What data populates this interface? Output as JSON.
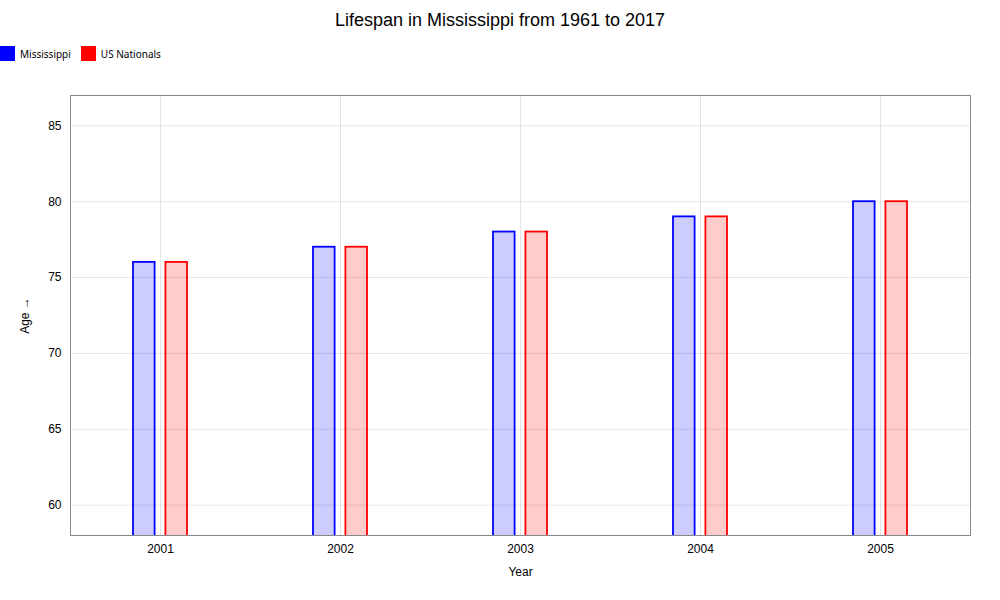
{
  "chart_data": {
    "type": "bar",
    "title": "Lifespan in Mississippi from 1961 to 2017",
    "xlabel": "Year",
    "ylabel": "Age",
    "categories": [
      "2001",
      "2002",
      "2003",
      "2004",
      "2005"
    ],
    "series": [
      {
        "name": "Mississippi",
        "color": "#0000ff",
        "values": [
          76.0,
          77.0,
          78.0,
          79.0,
          80.0
        ]
      },
      {
        "name": "US Nationals",
        "color": "#ff0000",
        "values": [
          76.0,
          77.0,
          78.0,
          79.0,
          80.0
        ]
      }
    ],
    "ylim": [
      58,
      87
    ],
    "yticks": [
      60,
      65,
      70,
      75,
      80,
      85
    ],
    "grid": true,
    "legend": "top"
  }
}
